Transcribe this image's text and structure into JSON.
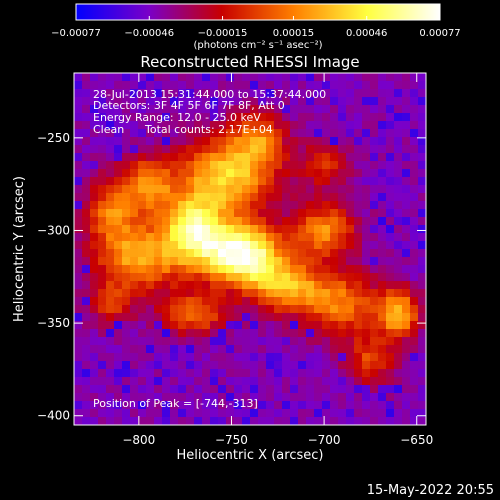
{
  "chart_data": {
    "type": "heatmap",
    "title": "Reconstructed RHESSI Image",
    "xlabel": "Heliocentric X (arcsec)",
    "ylabel": "Heliocentric Y (arcsec)",
    "xlim": [
      -835,
      -645
    ],
    "ylim": [
      -405,
      -215
    ],
    "x_ticks": [
      {
        "value": -800,
        "label": "−800"
      },
      {
        "value": -750,
        "label": "−750"
      },
      {
        "value": -700,
        "label": "−700"
      },
      {
        "value": -650,
        "label": "−650"
      }
    ],
    "y_ticks": [
      {
        "value": -250,
        "label": "−250"
      },
      {
        "value": -300,
        "label": "−300"
      },
      {
        "value": -350,
        "label": "−350"
      },
      {
        "value": -400,
        "label": "−400"
      }
    ],
    "colorbar": {
      "range": [
        -0.00077,
        0.00077
      ],
      "tick_labels": [
        {
          "value": -0.00077,
          "label": "−0.00077"
        },
        {
          "value": -0.00046,
          "label": "−0.00046"
        },
        {
          "value": -0.00015,
          "label": "−0.00015"
        },
        {
          "value": 0.00015,
          "label": "0.00015"
        },
        {
          "value": 0.00046,
          "label": "0.00046"
        },
        {
          "value": 0.00077,
          "label": "0.00077"
        }
      ],
      "unit_label": "(photons cm⁻² s⁻¹ asec⁻²)",
      "colormap": [
        "#0000ff",
        "#7a00c8",
        "#c80000",
        "#ff8000",
        "#ffff40",
        "#ffffff"
      ]
    },
    "annotations": {
      "time_range": "28-Jul-2013 15:31:44.000 to 15:37:44.000",
      "detectors": "Detectors: 3F 4F 5F 6F 7F 8F, Att 0",
      "energy_range": "Energy Range: 12.0 - 25.0 keV",
      "method": "Clean",
      "total_counts": "Total counts: 2.17E+04",
      "peak_position": "Position of Peak = [-744,-313]"
    },
    "peak": {
      "x": -744,
      "y": -313
    },
    "background_color": "#5a2896",
    "blobs": [
      {
        "x": -744,
        "y": -313,
        "sx": 14,
        "sy": 11,
        "amp": 1.0
      },
      {
        "x": -770,
        "y": -300,
        "sx": 12,
        "sy": 13,
        "amp": 0.78
      },
      {
        "x": -752,
        "y": -270,
        "sx": 18,
        "sy": 14,
        "amp": 0.66
      },
      {
        "x": -795,
        "y": -275,
        "sx": 10,
        "sy": 10,
        "amp": 0.5
      },
      {
        "x": -800,
        "y": -315,
        "sx": 16,
        "sy": 13,
        "amp": 0.56
      },
      {
        "x": -815,
        "y": -290,
        "sx": 10,
        "sy": 12,
        "amp": 0.42
      },
      {
        "x": -720,
        "y": -330,
        "sx": 14,
        "sy": 10,
        "amp": 0.56
      },
      {
        "x": -700,
        "y": -300,
        "sx": 12,
        "sy": 10,
        "amp": 0.5
      },
      {
        "x": -690,
        "y": -340,
        "sx": 14,
        "sy": 12,
        "amp": 0.46
      },
      {
        "x": -660,
        "y": -345,
        "sx": 8,
        "sy": 9,
        "amp": 0.6
      },
      {
        "x": -675,
        "y": -370,
        "sx": 9,
        "sy": 9,
        "amp": 0.36
      },
      {
        "x": -770,
        "y": -345,
        "sx": 12,
        "sy": 8,
        "amp": 0.44
      },
      {
        "x": -735,
        "y": -250,
        "sx": 10,
        "sy": 10,
        "amp": 0.4
      },
      {
        "x": -700,
        "y": -265,
        "sx": 9,
        "sy": 9,
        "amp": 0.3
      },
      {
        "x": -815,
        "y": -340,
        "sx": 8,
        "sy": 8,
        "amp": 0.3
      }
    ]
  },
  "footer": {
    "date_stamp": "15-May-2022 20:55"
  }
}
